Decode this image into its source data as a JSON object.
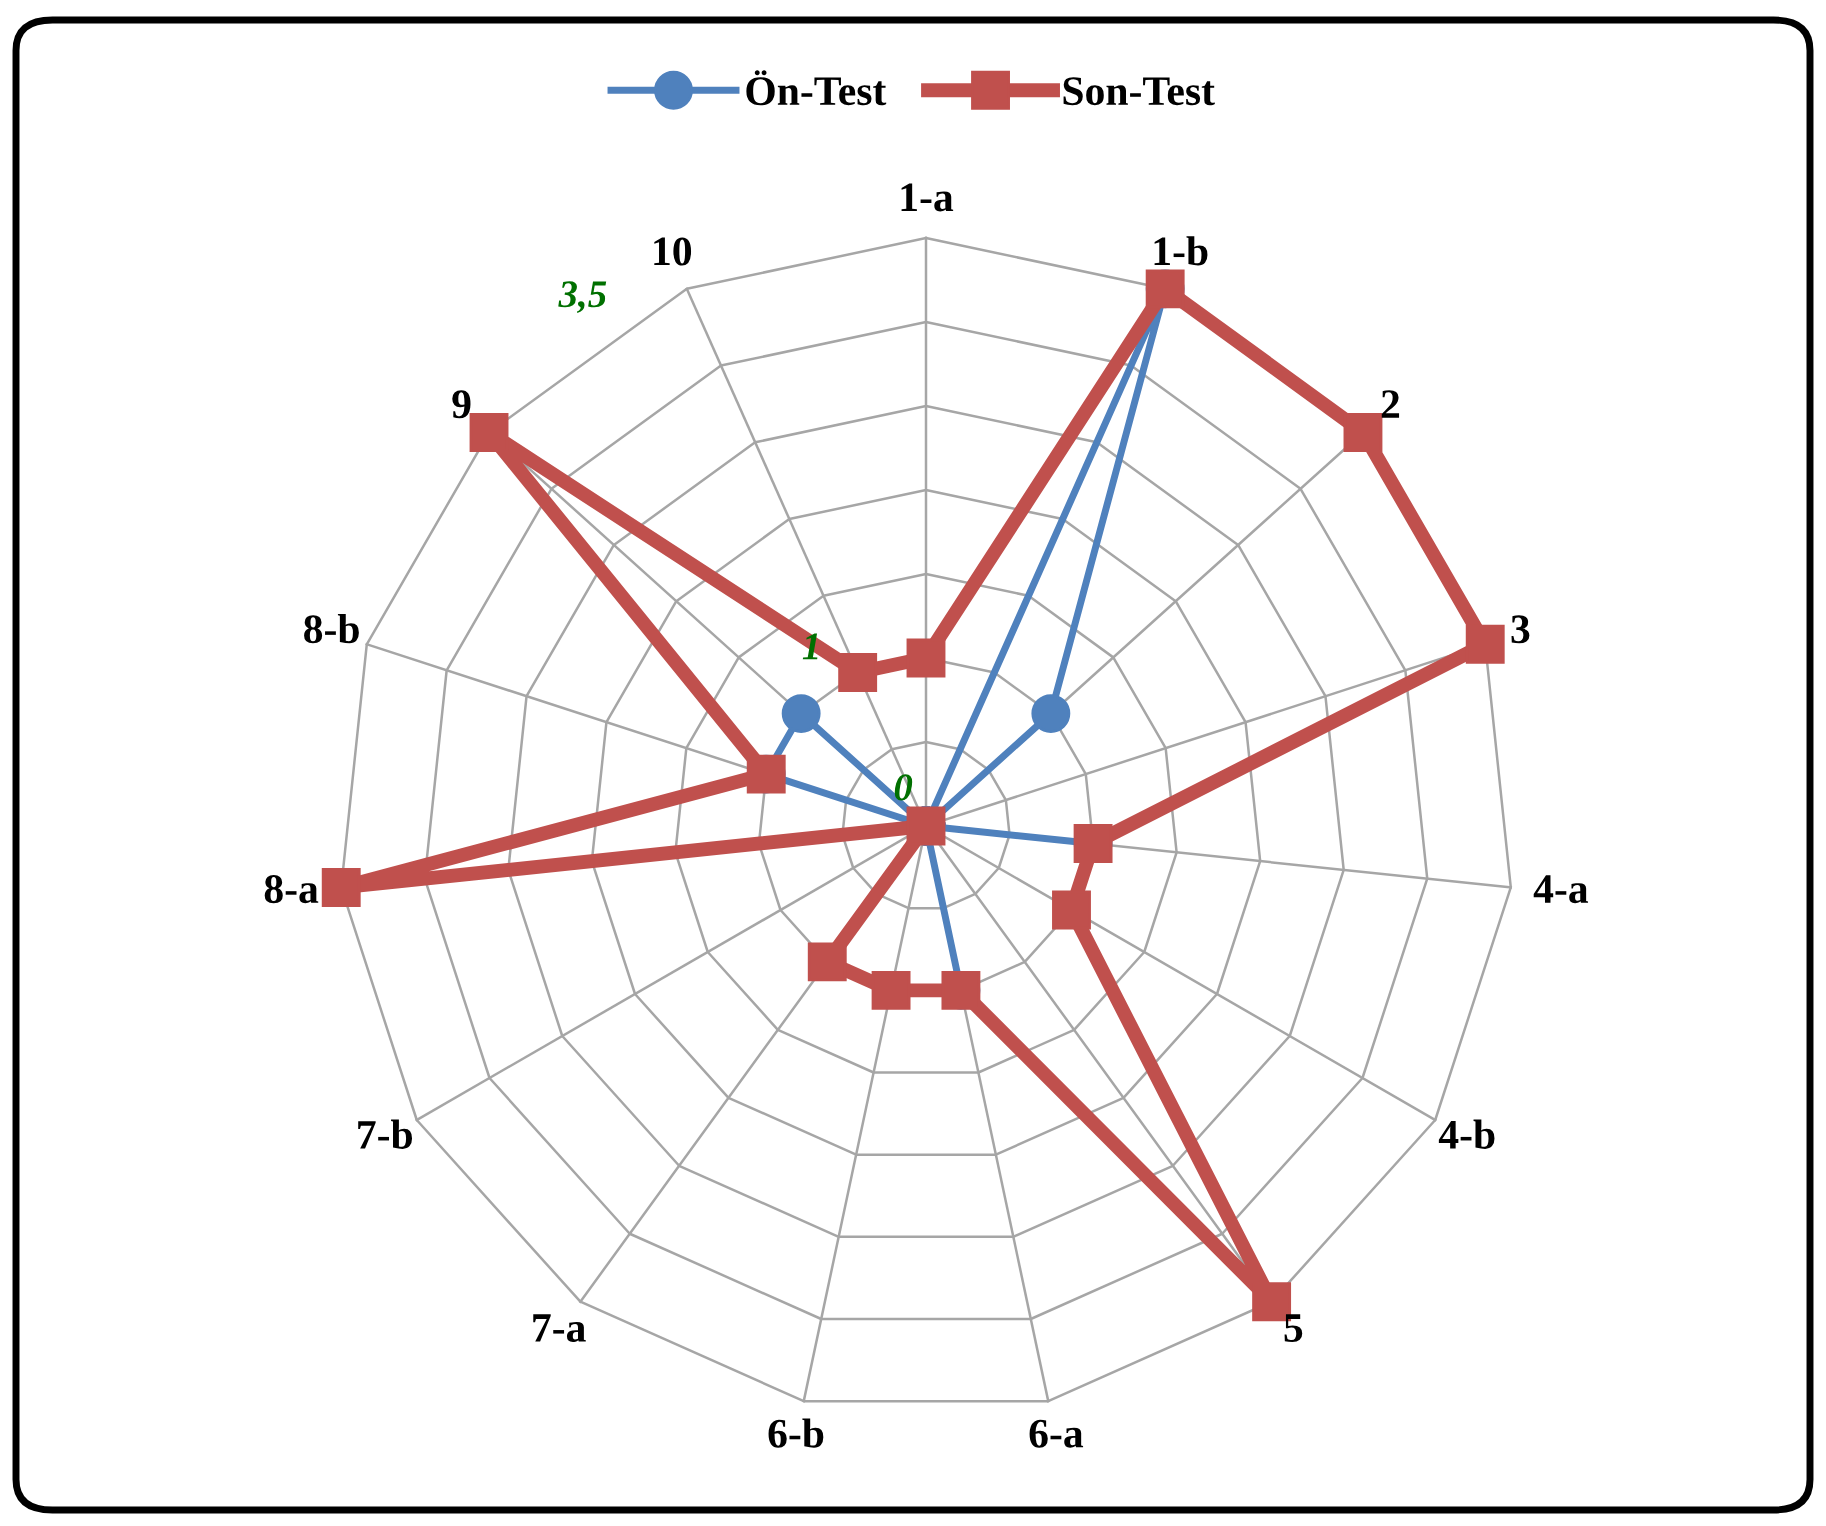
{
  "chart_data": {
    "type": "radar",
    "categories": [
      "1-a",
      "1-b",
      "2",
      "3",
      "4-a",
      "4-b",
      "5",
      "6-a",
      "6-b",
      "7-a",
      "7-b",
      "8-a",
      "8-b",
      "9",
      "10"
    ],
    "ylim": [
      0,
      3.5
    ],
    "yticks": [
      0,
      1,
      {
        "value": 3.5,
        "label": "3,5"
      }
    ],
    "legend": "top",
    "grid": true,
    "series": [
      {
        "name": "Ön-Test",
        "color": "#4f81bd",
        "marker": "circle",
        "values": [
          0,
          3.5,
          1,
          0,
          1,
          0,
          0,
          1,
          0,
          0,
          0,
          0,
          1,
          1,
          0
        ]
      },
      {
        "name": "Son-Test",
        "color": "#c0504d",
        "marker": "square",
        "values": [
          1,
          3.5,
          3.5,
          3.5,
          1,
          1,
          3.5,
          1,
          1,
          1,
          0,
          3.5,
          1,
          3.5,
          1
        ]
      }
    ]
  }
}
